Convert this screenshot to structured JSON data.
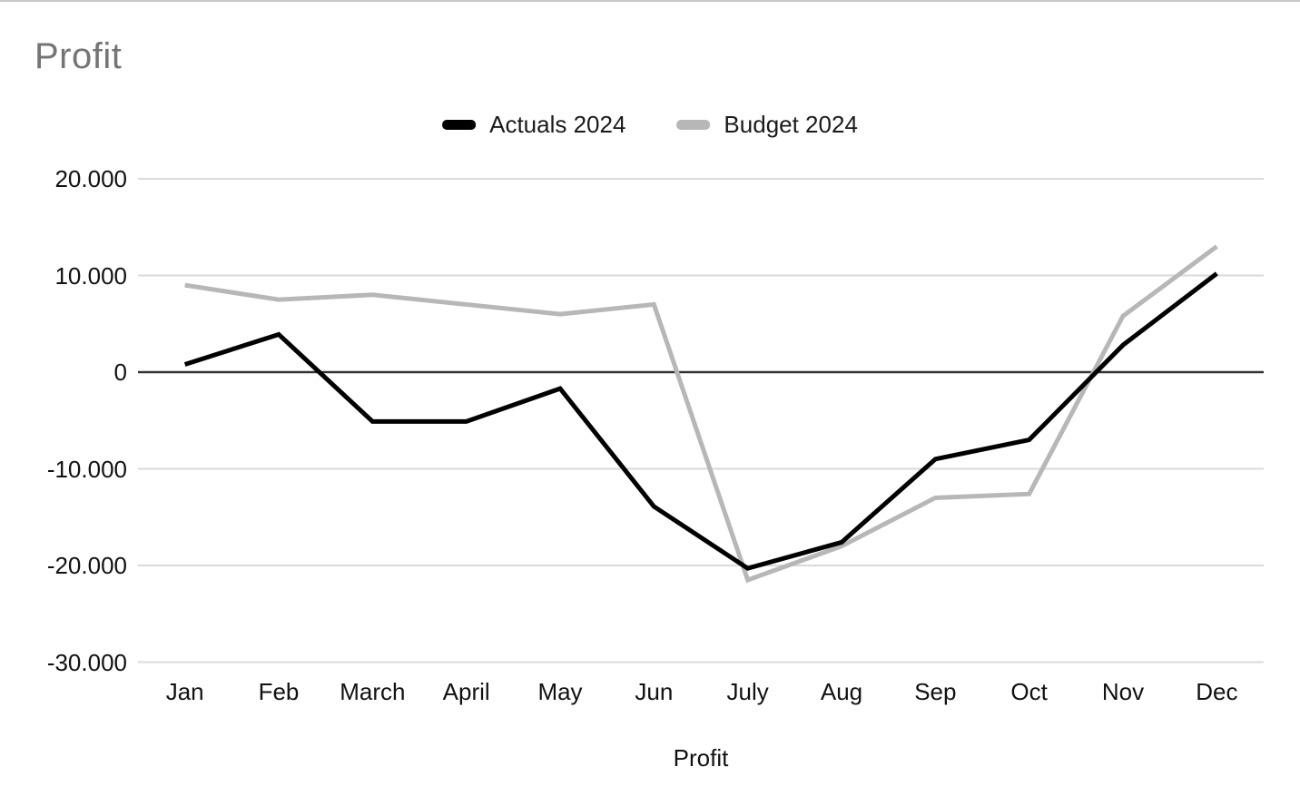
{
  "page": {
    "title": "Profit"
  },
  "chart_data": {
    "type": "line",
    "title": "Profit",
    "xlabel": "Profit",
    "ylabel": "",
    "categories": [
      "Jan",
      "Feb",
      "March",
      "April",
      "May",
      "Jun",
      "July",
      "Aug",
      "Sep",
      "Oct",
      "Nov",
      "Dec"
    ],
    "series": [
      {
        "name": "Actuals 2024",
        "color": "#000000",
        "values": [
          800,
          3900,
          -5100,
          -5100,
          -1700,
          -13900,
          -20300,
          -17600,
          -9000,
          -7000,
          2800,
          10200
        ]
      },
      {
        "name": "Budget 2024",
        "color": "#b7b7b7",
        "values": [
          9000,
          7500,
          8000,
          7000,
          6000,
          7000,
          -21500,
          -18000,
          -13000,
          -12600,
          5800,
          13000
        ]
      }
    ],
    "ylim": [
      -30000,
      20000
    ],
    "y_ticks": [
      {
        "value": 20000,
        "label": "20.000"
      },
      {
        "value": 10000,
        "label": "10.000"
      },
      {
        "value": 0,
        "label": "0"
      },
      {
        "value": -10000,
        "label": "-10.000"
      },
      {
        "value": -20000,
        "label": "-20.000"
      },
      {
        "value": -30000,
        "label": "-30.000"
      }
    ],
    "grid": true,
    "legend_position": "top"
  },
  "colors": {
    "title_text": "#757575",
    "axis_text": "#111111",
    "gridline": "#dadada",
    "zero_line": "#333333",
    "series_actuals": "#000000",
    "series_budget": "#b7b7b7"
  }
}
